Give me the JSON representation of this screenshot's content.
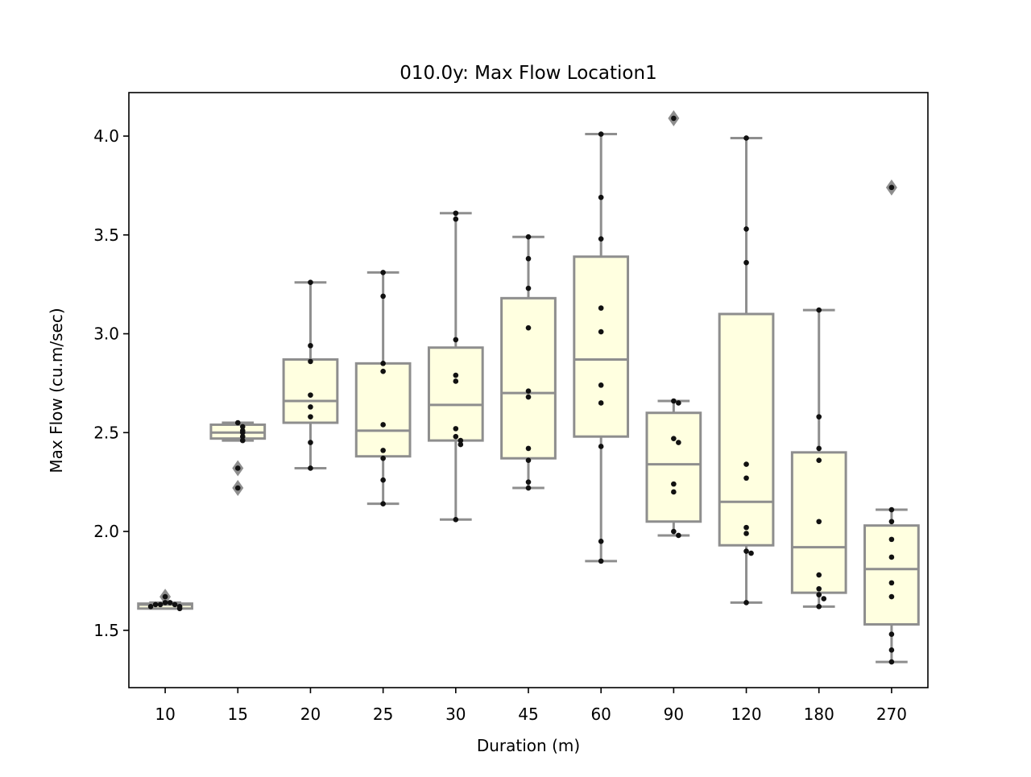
{
  "chart_data": {
    "type": "box",
    "title": "010.0y: Max Flow Location1",
    "xlabel": "Duration (m)",
    "ylabel": "Max Flow (cu.m/sec)",
    "categories": [
      "10",
      "15",
      "20",
      "25",
      "30",
      "45",
      "60",
      "90",
      "120",
      "180",
      "270"
    ],
    "ylim": [
      1.21,
      4.22
    ],
    "yticks": [
      1.5,
      2.0,
      2.5,
      3.0,
      3.5,
      4.0
    ],
    "ytick_labels": [
      "1.5",
      "2.0",
      "2.5",
      "3.0",
      "3.5",
      "4.0"
    ],
    "grid": false,
    "legend": "none",
    "colors": {
      "box_fill": "#ffffe0",
      "box_edge": "#8e8e8e",
      "point": "#111111",
      "outlier": "#8e8e8e"
    },
    "boxes": [
      {
        "category": "10",
        "whisker_low": 1.61,
        "q1": 1.61,
        "median": 1.63,
        "q3": 1.635,
        "whisker_high": 1.64,
        "outliers": [
          1.67
        ],
        "points": [
          1.61,
          1.62,
          1.62,
          1.63,
          1.63,
          1.63,
          1.64,
          1.64,
          1.67
        ]
      },
      {
        "category": "15",
        "whisker_low": 2.46,
        "q1": 2.47,
        "median": 2.5,
        "q3": 2.54,
        "whisker_high": 2.55,
        "outliers": [
          2.32,
          2.22
        ],
        "points": [
          2.55,
          2.53,
          2.51,
          2.5,
          2.48,
          2.46,
          2.32,
          2.22
        ]
      },
      {
        "category": "20",
        "whisker_low": 2.32,
        "q1": 2.55,
        "median": 2.66,
        "q3": 2.87,
        "whisker_high": 3.26,
        "outliers": [],
        "points": [
          3.26,
          2.94,
          2.86,
          2.69,
          2.63,
          2.58,
          2.45,
          2.32
        ]
      },
      {
        "category": "25",
        "whisker_low": 2.14,
        "q1": 2.38,
        "median": 2.51,
        "q3": 2.85,
        "whisker_high": 3.31,
        "outliers": [],
        "points": [
          3.31,
          3.19,
          2.85,
          2.81,
          2.54,
          2.41,
          2.37,
          2.26,
          2.14
        ]
      },
      {
        "category": "30",
        "whisker_low": 2.06,
        "q1": 2.46,
        "median": 2.64,
        "q3": 2.93,
        "whisker_high": 3.61,
        "outliers": [],
        "points": [
          3.61,
          3.58,
          2.97,
          2.79,
          2.76,
          2.52,
          2.48,
          2.46,
          2.44,
          2.06
        ]
      },
      {
        "category": "45",
        "whisker_low": 2.22,
        "q1": 2.37,
        "median": 2.7,
        "q3": 3.18,
        "whisker_high": 3.49,
        "outliers": [],
        "points": [
          3.49,
          3.38,
          3.23,
          3.03,
          2.71,
          2.68,
          2.42,
          2.36,
          2.25,
          2.22
        ]
      },
      {
        "category": "60",
        "whisker_low": 1.85,
        "q1": 2.48,
        "median": 2.87,
        "q3": 3.39,
        "whisker_high": 4.01,
        "outliers": [],
        "points": [
          4.01,
          3.69,
          3.48,
          3.13,
          3.01,
          2.74,
          2.65,
          2.43,
          1.95,
          1.85
        ]
      },
      {
        "category": "90",
        "whisker_low": 1.98,
        "q1": 2.05,
        "median": 2.34,
        "q3": 2.6,
        "whisker_high": 2.66,
        "outliers": [
          4.09
        ],
        "points": [
          4.09,
          2.66,
          2.65,
          2.47,
          2.45,
          2.24,
          2.2,
          2.0,
          1.98
        ]
      },
      {
        "category": "120",
        "whisker_low": 1.64,
        "q1": 1.93,
        "median": 2.15,
        "q3": 3.1,
        "whisker_high": 3.99,
        "outliers": [],
        "points": [
          3.99,
          3.53,
          3.36,
          2.34,
          2.27,
          2.02,
          1.99,
          1.9,
          1.89,
          1.64
        ]
      },
      {
        "category": "180",
        "whisker_low": 1.62,
        "q1": 1.69,
        "median": 1.92,
        "q3": 2.4,
        "whisker_high": 3.12,
        "outliers": [],
        "points": [
          3.12,
          2.58,
          2.42,
          2.36,
          2.05,
          1.78,
          1.71,
          1.68,
          1.66,
          1.62
        ]
      },
      {
        "category": "270",
        "whisker_low": 1.34,
        "q1": 1.53,
        "median": 1.81,
        "q3": 2.03,
        "whisker_high": 2.11,
        "outliers": [
          3.74
        ],
        "points": [
          3.74,
          2.11,
          2.05,
          1.96,
          1.87,
          1.74,
          1.67,
          1.48,
          1.4,
          1.34
        ]
      }
    ]
  }
}
